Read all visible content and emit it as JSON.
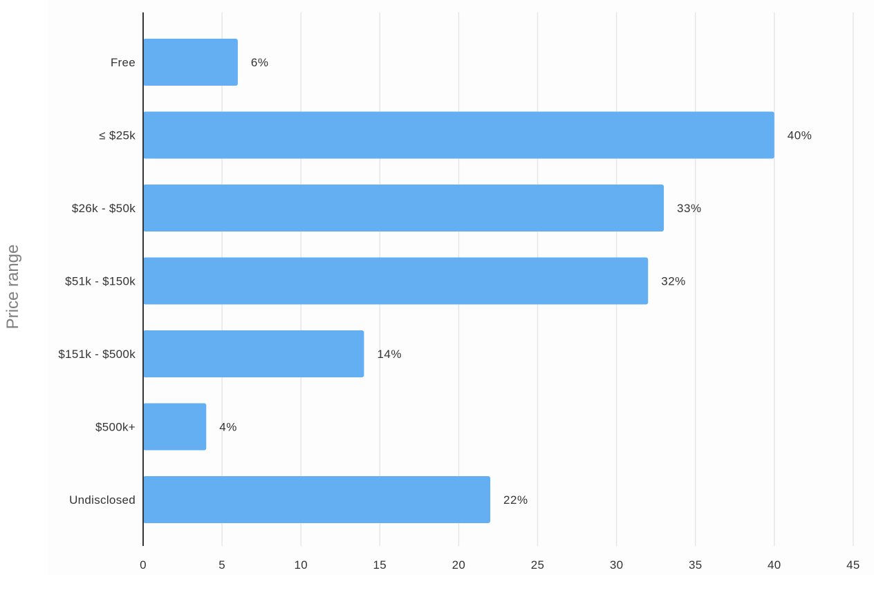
{
  "chart_data": {
    "type": "bar",
    "orientation": "horizontal",
    "categories": [
      "Free",
      "≤ $25k",
      "$26k - $50k",
      "$51k - $150k",
      "$151k - $500k",
      "$500k+",
      "Undisclosed"
    ],
    "values": [
      6,
      40,
      33,
      32,
      14,
      4,
      22
    ],
    "data_labels": [
      "6%",
      "40%",
      "33%",
      "32%",
      "14%",
      "4%",
      "22%"
    ],
    "x_ticks": [
      "0",
      "5",
      "10",
      "15",
      "20",
      "25",
      "30",
      "35",
      "40",
      "45"
    ],
    "xlim": [
      0,
      45
    ],
    "xlabel": "",
    "ylabel": "Price range",
    "grid": "vertical",
    "bar_color": "#63aff2",
    "grid_color": "#e6e6e6",
    "axis_color": "#333333"
  }
}
